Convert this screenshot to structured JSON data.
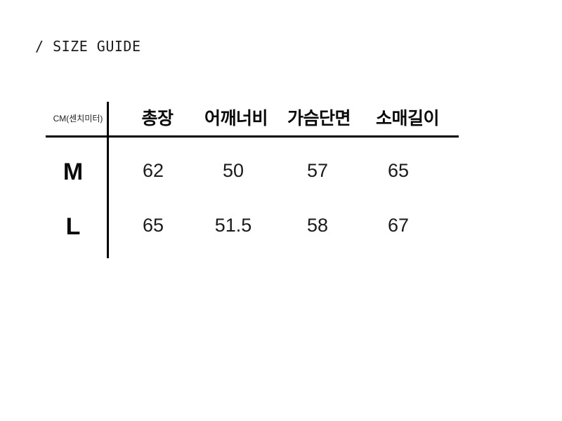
{
  "chart_data": {
    "type": "table",
    "title": "/ SIZE GUIDE",
    "unit_label": "CM(센치미터)",
    "columns": [
      "총장",
      "어깨너비",
      "가슴단면",
      "소매길이"
    ],
    "rows": [
      {
        "size": "M",
        "values": [
          "62",
          "50",
          "57",
          "65"
        ]
      },
      {
        "size": "L",
        "values": [
          "65",
          "51.5",
          "58",
          "67"
        ]
      }
    ]
  },
  "colors": {
    "background": "#ffffff",
    "text": "#111111",
    "line": "#000000"
  }
}
